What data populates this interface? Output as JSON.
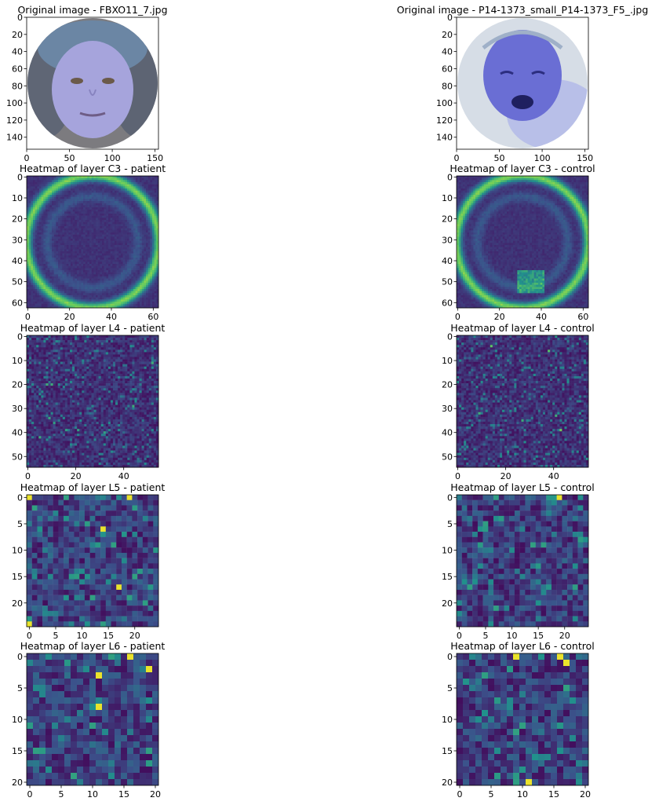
{
  "colormap": "viridis",
  "colors": {
    "viridis_stops": [
      "#440154",
      "#3b528b",
      "#21918c",
      "#5ec962",
      "#fde725"
    ]
  },
  "chart_data": [
    {
      "type": "heatmap",
      "kind": "image",
      "title": "Original image - FBXO11_7.jpg",
      "xlim": [
        0,
        154
      ],
      "ylim": [
        154,
        0
      ],
      "xticks": [
        0,
        50,
        100,
        150
      ],
      "yticks": [
        0,
        20,
        40,
        60,
        80,
        100,
        120,
        140
      ],
      "subject": "child face photo, circular crop, bluish tint"
    },
    {
      "type": "heatmap",
      "kind": "image",
      "title": "Original image - P14-1373_small_P14-1373_F5_.jpg",
      "xlim": [
        0,
        154
      ],
      "ylim": [
        154,
        0
      ],
      "xticks": [
        0,
        50,
        100,
        150
      ],
      "yticks": [
        0,
        20,
        40,
        60,
        80,
        100,
        120,
        140
      ],
      "subject": "crying infant face photo, circular crop, bluish tint"
    },
    {
      "type": "heatmap",
      "kind": "smooth",
      "colormap": "viridis",
      "title": "Heatmap of layer C3 - patient",
      "grid_size": 63,
      "xlim": [
        0,
        63
      ],
      "ylim": [
        63,
        0
      ],
      "xticks": [
        0,
        20,
        40,
        60
      ],
      "yticks": [
        0,
        10,
        20,
        30,
        40,
        50,
        60
      ]
    },
    {
      "type": "heatmap",
      "kind": "smooth",
      "colormap": "viridis",
      "title": "Heatmap of layer C3 - control",
      "grid_size": 63,
      "xlim": [
        0,
        63
      ],
      "ylim": [
        63,
        0
      ],
      "xticks": [
        0,
        20,
        40,
        60
      ],
      "yticks": [
        0,
        10,
        20,
        30,
        40,
        50,
        60
      ]
    },
    {
      "type": "heatmap",
      "kind": "noise",
      "colormap": "viridis",
      "title": "Heatmap of layer L4 - patient",
      "grid_size": 55,
      "xlim": [
        0,
        55
      ],
      "ylim": [
        55,
        0
      ],
      "xticks": [
        0,
        20,
        40
      ],
      "yticks": [
        0,
        10,
        20,
        30,
        40,
        50
      ]
    },
    {
      "type": "heatmap",
      "kind": "noise",
      "colormap": "viridis",
      "title": "Heatmap of layer L4 - control",
      "grid_size": 55,
      "xlim": [
        0,
        55
      ],
      "ylim": [
        55,
        0
      ],
      "xticks": [
        0,
        20,
        40
      ],
      "yticks": [
        0,
        10,
        20,
        30,
        40,
        50
      ]
    },
    {
      "type": "heatmap",
      "kind": "grid",
      "colormap": "viridis",
      "title": "Heatmap of layer L5 - patient",
      "grid_size": 25,
      "xlim": [
        0,
        25
      ],
      "ylim": [
        25,
        0
      ],
      "xticks": [
        0,
        5,
        10,
        15,
        20
      ],
      "yticks": [
        0,
        5,
        10,
        15,
        20
      ],
      "hot_cells": [
        [
          0,
          0
        ],
        [
          0,
          19
        ],
        [
          6,
          14
        ],
        [
          17,
          17
        ],
        [
          24,
          0
        ]
      ]
    },
    {
      "type": "heatmap",
      "kind": "grid",
      "colormap": "viridis",
      "title": "Heatmap of layer L5 - control",
      "grid_size": 25,
      "xlim": [
        0,
        25
      ],
      "ylim": [
        25,
        0
      ],
      "xticks": [
        0,
        5,
        10,
        15,
        20
      ],
      "yticks": [
        0,
        5,
        10,
        15,
        20
      ],
      "hot_cells": [
        [
          0,
          19
        ]
      ]
    },
    {
      "type": "heatmap",
      "kind": "grid",
      "colormap": "viridis",
      "title": "Heatmap of layer L6 - patient",
      "grid_size": 21,
      "xlim": [
        0,
        21
      ],
      "ylim": [
        21,
        0
      ],
      "xticks": [
        0,
        5,
        10,
        15,
        20
      ],
      "yticks": [
        0,
        5,
        10,
        15,
        20
      ],
      "hot_cells": [
        [
          0,
          16
        ],
        [
          3,
          11
        ],
        [
          8,
          11
        ],
        [
          2,
          19
        ]
      ]
    },
    {
      "type": "heatmap",
      "kind": "grid",
      "colormap": "viridis",
      "title": "Heatmap of layer L6 - control",
      "grid_size": 21,
      "xlim": [
        0,
        21
      ],
      "ylim": [
        21,
        0
      ],
      "xticks": [
        0,
        5,
        10,
        15,
        20
      ],
      "yticks": [
        0,
        5,
        10,
        15,
        20
      ],
      "hot_cells": [
        [
          0,
          9
        ],
        [
          1,
          17
        ],
        [
          20,
          11
        ],
        [
          0,
          16
        ]
      ]
    }
  ]
}
